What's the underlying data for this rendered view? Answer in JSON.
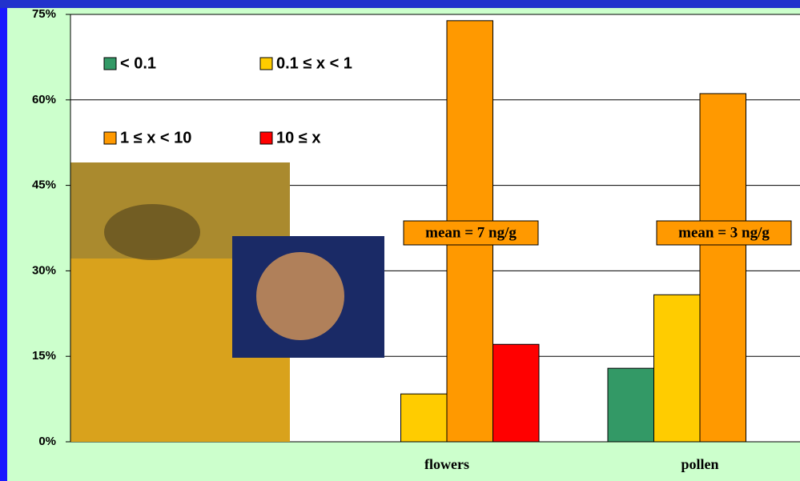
{
  "chart_data": {
    "type": "bar",
    "categories": [
      null,
      "flowers",
      "pollen"
    ],
    "series": [
      {
        "name": "< 0.1",
        "color": "#339966",
        "values": [
          null,
          0,
          12.9
        ]
      },
      {
        "name": "0.1 ≤ x < 1",
        "color": "#ffcc00",
        "values": [
          null,
          8.4,
          25.8
        ]
      },
      {
        "name": "1 ≤ x < 10",
        "color": "#ff9900",
        "values": [
          null,
          73.9,
          61.1
        ]
      },
      {
        "name": "10 ≤ x",
        "color": "#ff0000",
        "values": [
          null,
          17.1,
          0
        ]
      }
    ],
    "annotations": [
      "mean = 7 ng/g",
      "mean = 3 ng/g"
    ],
    "ylim": [
      0,
      75
    ],
    "yticks": [
      {
        "value": 0,
        "label": "0%"
      },
      {
        "value": 15,
        "label": "15%"
      },
      {
        "value": 30,
        "label": "30%"
      },
      {
        "value": 45,
        "label": "45%"
      },
      {
        "value": 60,
        "label": "60%"
      },
      {
        "value": 75,
        "label": "75%"
      }
    ],
    "grid": true,
    "legend": "upper left"
  }
}
